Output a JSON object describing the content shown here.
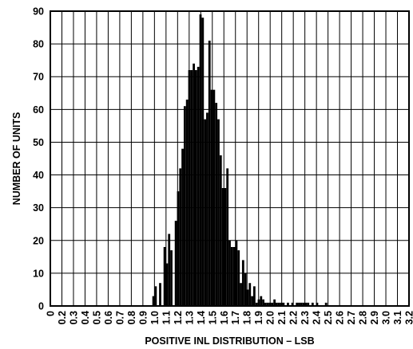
{
  "chart_data": {
    "type": "bar",
    "title": "",
    "xlabel": "POSITIVE INL DISTRIBUTION – LSB",
    "ylabel": "NUMBER OF UNITS",
    "xlim": [
      0,
      3.2
    ],
    "ylim": [
      0,
      90
    ],
    "grid": true,
    "x_ticks": [
      "0",
      "0.2",
      "0.3",
      "0.4",
      "0.5",
      "0.6",
      "0.7",
      "0.8",
      "0.9",
      "1.0",
      "1.1",
      "1.2",
      "1.3",
      "1.4",
      "1.5",
      "1.6",
      "1.7",
      "1.8",
      "1.9",
      "2.0",
      "2.1",
      "2.2",
      "2.3",
      "2.4",
      "2.5",
      "2.6",
      "2.7",
      "2.8",
      "2.9",
      "3.0",
      "3.1",
      "3.2"
    ],
    "y_ticks": [
      "0",
      "10",
      "20",
      "30",
      "40",
      "50",
      "60",
      "70",
      "80",
      "90"
    ],
    "x": [
      0.92,
      0.94,
      0.98,
      1.02,
      1.04,
      1.06,
      1.08,
      1.12,
      1.14,
      1.16,
      1.18,
      1.2,
      1.22,
      1.24,
      1.26,
      1.28,
      1.3,
      1.32,
      1.34,
      1.36,
      1.38,
      1.4,
      1.42,
      1.44,
      1.46,
      1.48,
      1.5,
      1.52,
      1.54,
      1.56,
      1.58,
      1.6,
      1.62,
      1.64,
      1.66,
      1.68,
      1.7,
      1.72,
      1.74,
      1.76,
      1.78,
      1.8,
      1.82,
      1.84,
      1.86,
      1.88,
      1.9,
      1.92,
      1.94,
      1.96,
      1.98,
      2.0,
      2.02,
      2.04,
      2.06,
      2.08,
      2.12,
      2.16,
      2.2,
      2.22,
      2.24,
      2.26,
      2.28,
      2.3,
      2.34,
      2.38,
      2.46
    ],
    "values": [
      3,
      6,
      7,
      18,
      13,
      22,
      17,
      26,
      35,
      42,
      48,
      61,
      63,
      72,
      72,
      74,
      72,
      73,
      89,
      88,
      57,
      59,
      81,
      66,
      66,
      62,
      57,
      46,
      36,
      36,
      42,
      20,
      18,
      18,
      20,
      17,
      7,
      14,
      10,
      5,
      7,
      3,
      6,
      1,
      2,
      3,
      2,
      1,
      1,
      1,
      1,
      2,
      1,
      1,
      1,
      1,
      1,
      1,
      1,
      1,
      1,
      1,
      1,
      1,
      1,
      1,
      1
    ]
  }
}
